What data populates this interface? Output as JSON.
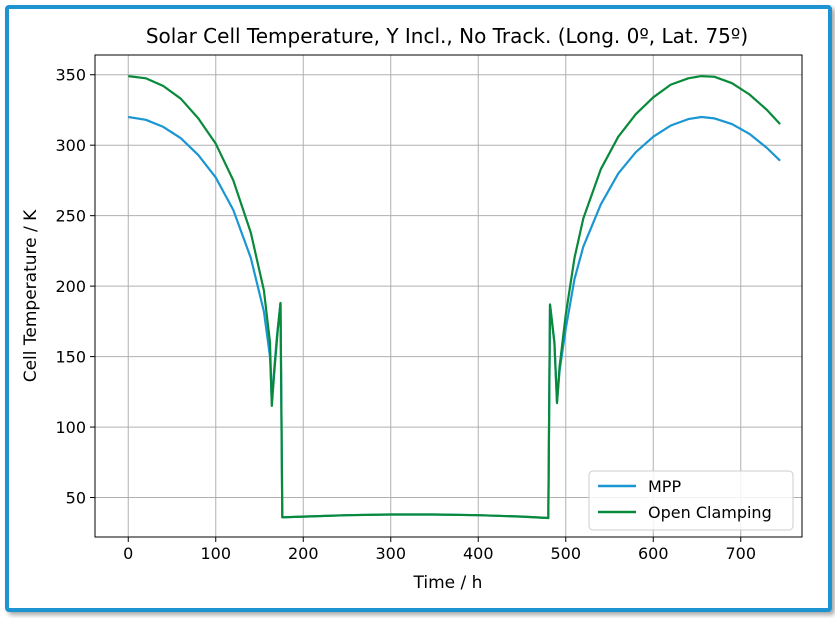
{
  "chart_data": {
    "type": "line",
    "title": "Solar Cell Temperature, Y Incl., No Track. (Long. 0º, Lat. 75º)",
    "xlabel": "Time / h",
    "ylabel": "Cell Temperature / K",
    "xlim": [
      -38,
      770
    ],
    "ylim": [
      22,
      364
    ],
    "xticks": [
      0,
      100,
      200,
      300,
      400,
      500,
      600,
      700
    ],
    "yticks": [
      50,
      100,
      150,
      200,
      250,
      300,
      350
    ],
    "xtick_labels": [
      "0",
      "100",
      "200",
      "300",
      "400",
      "500",
      "600",
      "700"
    ],
    "ytick_labels": [
      "50",
      "100",
      "150",
      "200",
      "250",
      "300",
      "350"
    ],
    "grid": true,
    "legend_position": "bottom-right",
    "series": [
      {
        "name": "MPP",
        "color": "#1a96d2",
        "points": [
          [
            0,
            320
          ],
          [
            20,
            318
          ],
          [
            40,
            313
          ],
          [
            60,
            305
          ],
          [
            80,
            293
          ],
          [
            100,
            277
          ],
          [
            120,
            254
          ],
          [
            140,
            220
          ],
          [
            155,
            182
          ],
          [
            162,
            150
          ],
          [
            164,
            118
          ],
          [
            166,
            135
          ],
          [
            170,
            165
          ],
          [
            174,
            188
          ],
          [
            176,
            36
          ],
          [
            200,
            36.5
          ],
          [
            250,
            37.5
          ],
          [
            300,
            38
          ],
          [
            350,
            38
          ],
          [
            400,
            37.5
          ],
          [
            450,
            36.5
          ],
          [
            480,
            35.5
          ],
          [
            482,
            187
          ],
          [
            487,
            160
          ],
          [
            490,
            118
          ],
          [
            493,
            140
          ],
          [
            500,
            170
          ],
          [
            510,
            205
          ],
          [
            520,
            228
          ],
          [
            540,
            258
          ],
          [
            560,
            280
          ],
          [
            580,
            295
          ],
          [
            600,
            306
          ],
          [
            620,
            314
          ],
          [
            640,
            318.5
          ],
          [
            655,
            320
          ],
          [
            670,
            319
          ],
          [
            690,
            315
          ],
          [
            710,
            308
          ],
          [
            730,
            298
          ],
          [
            745,
            289
          ]
        ]
      },
      {
        "name": "Open Clamping",
        "color": "#088a3a",
        "points": [
          [
            0,
            349
          ],
          [
            20,
            347.5
          ],
          [
            40,
            342
          ],
          [
            60,
            333
          ],
          [
            80,
            319
          ],
          [
            100,
            301
          ],
          [
            120,
            275
          ],
          [
            140,
            238
          ],
          [
            155,
            197
          ],
          [
            162,
            160
          ],
          [
            164,
            115
          ],
          [
            167,
            140
          ],
          [
            171,
            170
          ],
          [
            174,
            188
          ],
          [
            176,
            36
          ],
          [
            200,
            36.5
          ],
          [
            250,
            37.5
          ],
          [
            300,
            38
          ],
          [
            350,
            38
          ],
          [
            400,
            37.5
          ],
          [
            450,
            36.5
          ],
          [
            480,
            35.5
          ],
          [
            482,
            187
          ],
          [
            487,
            160
          ],
          [
            490,
            117
          ],
          [
            493,
            143
          ],
          [
            500,
            180
          ],
          [
            510,
            220
          ],
          [
            520,
            248
          ],
          [
            540,
            283
          ],
          [
            560,
            306
          ],
          [
            580,
            322
          ],
          [
            600,
            334
          ],
          [
            620,
            343
          ],
          [
            640,
            347.5
          ],
          [
            655,
            349
          ],
          [
            670,
            348.5
          ],
          [
            690,
            344
          ],
          [
            710,
            336
          ],
          [
            730,
            325
          ],
          [
            745,
            315
          ]
        ]
      }
    ]
  }
}
